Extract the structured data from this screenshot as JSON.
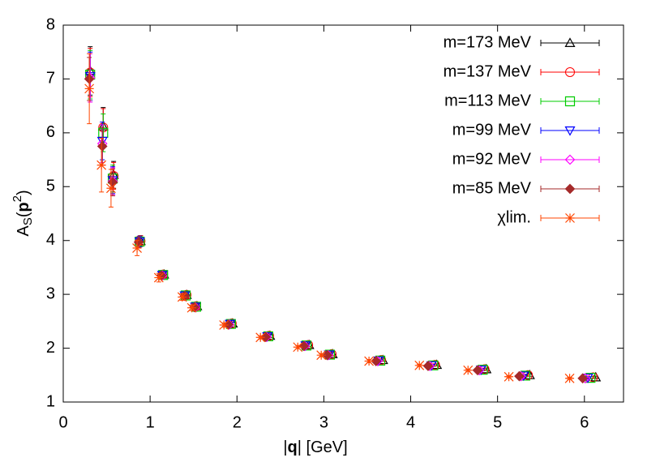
{
  "chart_data": {
    "type": "errorbar-scatter",
    "xlabel_parts": [
      "|",
      "q",
      "| [GeV]"
    ],
    "ylabel_parts": [
      "A",
      "S",
      "(",
      "p",
      "2",
      ")"
    ],
    "xlim": [
      0,
      6.45
    ],
    "ylim": [
      1,
      8
    ],
    "xticks": [
      0,
      1,
      2,
      3,
      4,
      5,
      6
    ],
    "yticks": [
      1,
      2,
      3,
      4,
      5,
      6,
      7,
      8
    ],
    "legend": "top-right",
    "series": [
      {
        "name": "m=173 MeV",
        "color": "#000000",
        "marker": "triangle",
        "x": [
          0.31,
          0.46,
          0.58,
          0.89,
          1.16,
          1.42,
          1.54,
          1.95,
          2.38,
          2.83,
          3.1,
          3.68,
          4.3,
          4.87,
          5.37,
          6.13
        ],
        "values": [
          7.15,
          6.12,
          5.22,
          3.99,
          3.37,
          2.99,
          2.78,
          2.46,
          2.23,
          2.06,
          1.89,
          1.78,
          1.69,
          1.61,
          1.5,
          1.46
        ],
        "errors": [
          0.45,
          0.35,
          0.25,
          0.1,
          0.06,
          0.05,
          0.04,
          0.03,
          0.03,
          0.03,
          0.03,
          0.02,
          0.02,
          0.02,
          0.02,
          0.02
        ]
      },
      {
        "name": "m=137 MeV",
        "color": "#ff0000",
        "marker": "circle",
        "x": [
          0.31,
          0.46,
          0.58,
          0.89,
          1.15,
          1.42,
          1.53,
          1.94,
          2.37,
          2.82,
          3.09,
          3.66,
          4.28,
          4.85,
          5.35,
          6.1
        ],
        "values": [
          7.12,
          6.1,
          5.2,
          3.99,
          3.37,
          2.99,
          2.78,
          2.46,
          2.23,
          2.06,
          1.89,
          1.78,
          1.69,
          1.61,
          1.5,
          1.46
        ],
        "errors": [
          0.45,
          0.35,
          0.25,
          0.1,
          0.06,
          0.05,
          0.04,
          0.03,
          0.03,
          0.03,
          0.03,
          0.02,
          0.02,
          0.02,
          0.02,
          0.02
        ]
      },
      {
        "name": "m=113 MeV",
        "color": "#00cc00",
        "marker": "square",
        "x": [
          0.31,
          0.46,
          0.57,
          0.88,
          1.15,
          1.41,
          1.53,
          1.93,
          2.36,
          2.8,
          3.07,
          3.65,
          4.26,
          4.83,
          5.32,
          6.07
        ],
        "values": [
          7.08,
          6.0,
          5.15,
          3.98,
          3.36,
          2.98,
          2.77,
          2.45,
          2.22,
          2.05,
          1.88,
          1.77,
          1.68,
          1.6,
          1.49,
          1.45
        ],
        "errors": [
          0.45,
          0.35,
          0.25,
          0.1,
          0.06,
          0.05,
          0.04,
          0.03,
          0.03,
          0.03,
          0.03,
          0.02,
          0.02,
          0.02,
          0.02,
          0.02
        ]
      },
      {
        "name": "m=99 MeV",
        "color": "#0000ff",
        "marker": "triangle-down",
        "x": [
          0.31,
          0.45,
          0.57,
          0.88,
          1.14,
          1.4,
          1.52,
          1.92,
          2.35,
          2.79,
          3.06,
          3.63,
          4.24,
          4.81,
          5.3,
          6.04
        ],
        "values": [
          7.05,
          5.85,
          5.12,
          3.98,
          3.36,
          2.98,
          2.77,
          2.45,
          2.22,
          2.05,
          1.88,
          1.77,
          1.68,
          1.6,
          1.49,
          1.45
        ],
        "errors": [
          0.45,
          0.35,
          0.25,
          0.1,
          0.06,
          0.05,
          0.04,
          0.03,
          0.03,
          0.03,
          0.03,
          0.02,
          0.02,
          0.02,
          0.02,
          0.02
        ]
      },
      {
        "name": "m=92 MeV",
        "color": "#ff00ff",
        "marker": "diamond",
        "x": [
          0.31,
          0.45,
          0.57,
          0.87,
          1.14,
          1.4,
          1.52,
          1.91,
          2.34,
          2.78,
          3.05,
          3.62,
          4.22,
          4.79,
          5.27,
          6.01
        ],
        "values": [
          7.02,
          5.8,
          5.1,
          3.97,
          3.35,
          2.97,
          2.76,
          2.44,
          2.21,
          2.04,
          1.87,
          1.76,
          1.67,
          1.59,
          1.48,
          1.44
        ],
        "errors": [
          0.45,
          0.35,
          0.25,
          0.1,
          0.06,
          0.05,
          0.04,
          0.03,
          0.03,
          0.03,
          0.03,
          0.02,
          0.02,
          0.02,
          0.02,
          0.02
        ]
      },
      {
        "name": "m=85 MeV",
        "color": "#a52a2a",
        "marker": "diamond-filled",
        "x": [
          0.3,
          0.45,
          0.57,
          0.87,
          1.13,
          1.4,
          1.51,
          1.9,
          2.33,
          2.77,
          3.04,
          3.6,
          4.2,
          4.77,
          5.25,
          5.98
        ],
        "values": [
          7.0,
          5.75,
          5.08,
          3.97,
          3.35,
          2.97,
          2.76,
          2.44,
          2.21,
          2.04,
          1.87,
          1.76,
          1.67,
          1.59,
          1.48,
          1.44
        ],
        "errors": [
          0.4,
          0.35,
          0.25,
          0.1,
          0.06,
          0.05,
          0.04,
          0.03,
          0.03,
          0.03,
          0.03,
          0.02,
          0.02,
          0.02,
          0.02,
          0.02
        ]
      },
      {
        "name": "χlim.",
        "color": "#ff4500",
        "marker": "star",
        "x": [
          0.3,
          0.44,
          0.55,
          0.85,
          1.1,
          1.37,
          1.48,
          1.85,
          2.27,
          2.7,
          2.97,
          3.52,
          4.1,
          4.66,
          5.13,
          5.83
        ],
        "values": [
          6.82,
          5.4,
          4.97,
          3.86,
          3.31,
          2.95,
          2.75,
          2.43,
          2.2,
          2.02,
          1.87,
          1.76,
          1.68,
          1.59,
          1.47,
          1.44
        ],
        "errors": [
          0.65,
          0.5,
          0.35,
          0.14,
          0.08,
          0.06,
          0.05,
          0.04,
          0.03,
          0.03,
          0.03,
          0.03,
          0.02,
          0.02,
          0.02,
          0.02
        ]
      }
    ]
  }
}
